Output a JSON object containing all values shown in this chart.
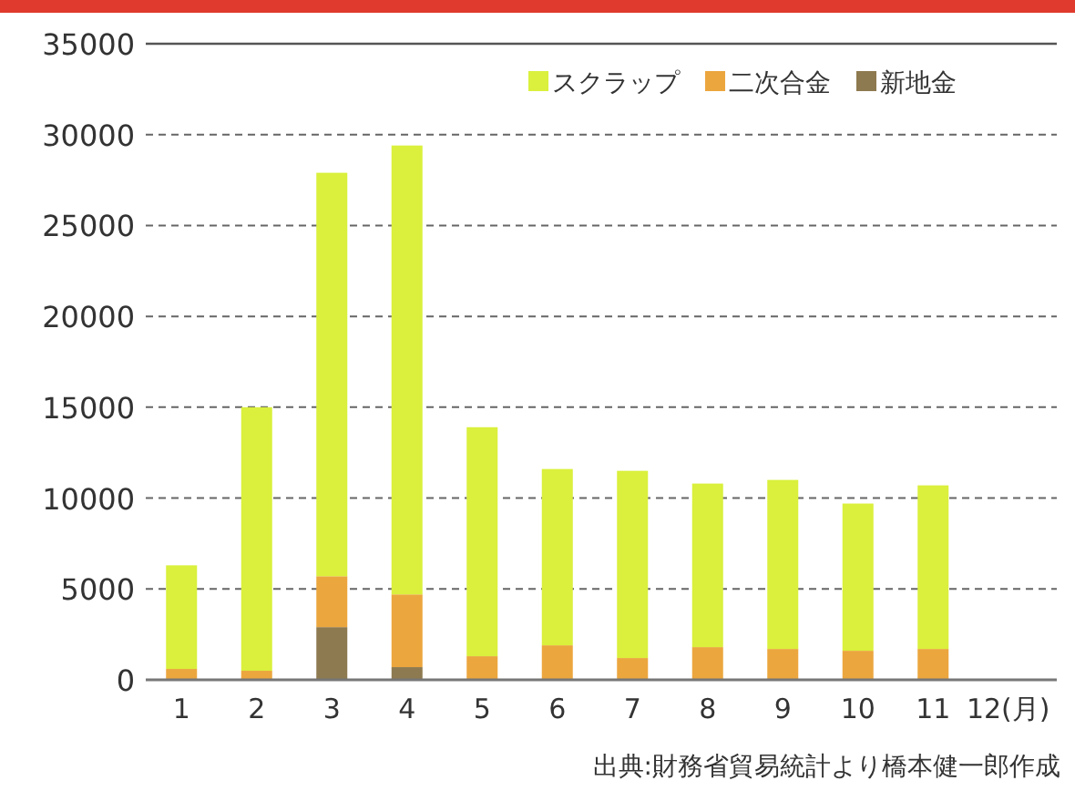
{
  "chart_data": {
    "type": "bar",
    "stacked": true,
    "categories": [
      "1",
      "2",
      "3",
      "4",
      "5",
      "6",
      "7",
      "8",
      "9",
      "10",
      "11",
      "12(月)"
    ],
    "series": [
      {
        "name": "新地金",
        "color": "#8e7a50",
        "values": [
          0,
          0,
          2900,
          700,
          0,
          0,
          0,
          0,
          0,
          0,
          0,
          null
        ]
      },
      {
        "name": "二次合金",
        "color": "#eca63e",
        "values": [
          600,
          500,
          2800,
          4000,
          1300,
          1900,
          1200,
          1800,
          1700,
          1600,
          1700,
          null
        ]
      },
      {
        "name": "スクラップ",
        "color": "#daf03c",
        "values": [
          5700,
          14500,
          22200,
          24700,
          12600,
          9700,
          10300,
          9000,
          9300,
          8100,
          9000,
          null
        ]
      }
    ],
    "ylim": [
      0,
      35000
    ],
    "yticks": [
      0,
      5000,
      10000,
      15000,
      20000,
      25000,
      30000,
      35000
    ],
    "grid": "y",
    "legend": "top right",
    "annotations": [
      "出典:財務省貿易統計より橋本健一郎作成"
    ]
  }
}
